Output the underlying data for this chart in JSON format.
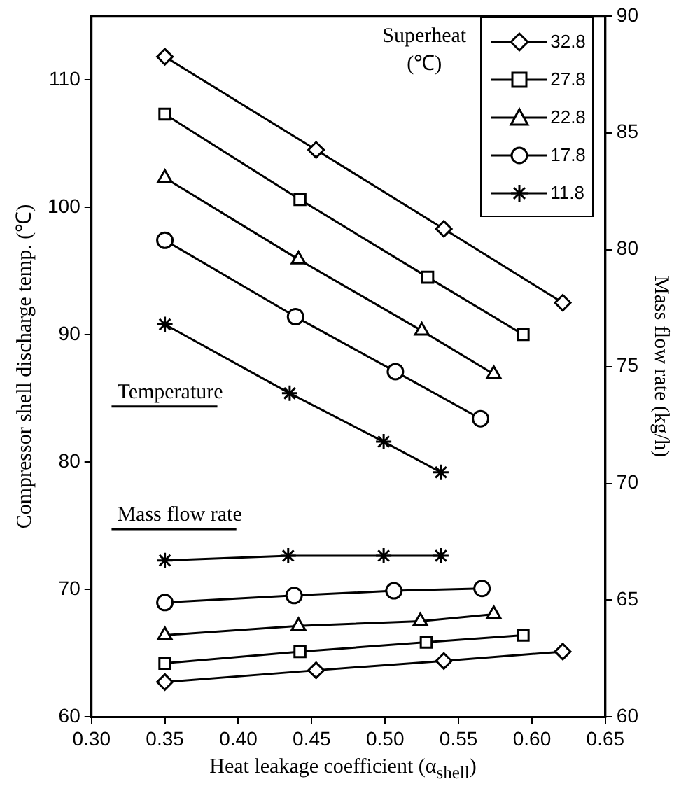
{
  "chart_data": {
    "type": "line",
    "xlabel": "Heat leakage coefficient (α$_{shell}$)",
    "ylabel": "Compressor shell discharge temp. (℃)",
    "y2label": "Mass flow rate (kg/h)",
    "legend_title": "Superheat (℃)",
    "legend": "top right",
    "line_style": "solid",
    "xlim": [
      0.3,
      0.65
    ],
    "xticks": [
      {
        "value": 0.3,
        "label": "0.30"
      },
      0.35,
      {
        "value": 0.4,
        "label": "0.40"
      },
      0.45,
      {
        "value": 0.5,
        "label": "0.50"
      },
      0.55,
      {
        "value": 0.6,
        "label": "0.60"
      },
      0.65
    ],
    "ylim": [
      60,
      115
    ],
    "yticks": [
      60,
      70,
      80,
      90,
      100,
      110
    ],
    "y2lim": [
      60,
      90
    ],
    "y2ticks": [
      60,
      65,
      70,
      75,
      80,
      85,
      90
    ],
    "annotations": [
      "Temperature",
      "Mass flow rate"
    ],
    "series": [
      {
        "name": "32.8",
        "color": "#000000",
        "marker": "diamond",
        "x": [
          0.35,
          0.453,
          0.54,
          0.621
        ],
        "values": [
          111.8,
          104.5,
          98.3,
          92.5
        ]
      },
      {
        "name": "27.8",
        "color": "#000000",
        "marker": "square",
        "x": [
          0.35,
          0.442,
          0.529,
          0.594
        ],
        "values": [
          107.3,
          100.6,
          94.5,
          90.0
        ]
      },
      {
        "name": "22.8",
        "color": "#000000",
        "marker": "triangle",
        "x": [
          0.35,
          0.441,
          0.525,
          0.574
        ],
        "values": [
          102.3,
          95.9,
          90.3,
          86.9
        ]
      },
      {
        "name": "17.8",
        "color": "#000000",
        "marker": "circle",
        "x": [
          0.35,
          0.439,
          0.507,
          0.565
        ],
        "values": [
          97.4,
          91.4,
          87.1,
          83.4
        ]
      },
      {
        "name": "11.8",
        "color": "#000000",
        "marker": "cross",
        "x": [
          0.35,
          0.435,
          0.499,
          0.538
        ],
        "values": [
          90.8,
          85.4,
          81.6,
          79.2
        ]
      },
      {
        "axis": "y2",
        "color": "#000000",
        "marker": "diamond",
        "x": [
          0.35,
          0.453,
          0.54,
          0.621
        ],
        "values": [
          61.5,
          62.0,
          62.4,
          62.8
        ]
      },
      {
        "axis": "y2",
        "color": "#000000",
        "marker": "square",
        "x": [
          0.35,
          0.442,
          0.528,
          0.594
        ],
        "values": [
          62.3,
          62.8,
          63.2,
          63.5
        ]
      },
      {
        "axis": "y2",
        "color": "#000000",
        "marker": "triangle",
        "x": [
          0.35,
          0.441,
          0.524,
          0.574
        ],
        "values": [
          63.5,
          63.9,
          64.1,
          64.4
        ]
      },
      {
        "axis": "y2",
        "color": "#000000",
        "marker": "circle",
        "x": [
          0.35,
          0.438,
          0.506,
          0.566
        ],
        "values": [
          64.9,
          65.2,
          65.4,
          65.5
        ]
      },
      {
        "axis": "y2",
        "color": "#000000",
        "marker": "cross",
        "x": [
          0.35,
          0.434,
          0.499,
          0.538
        ],
        "values": [
          66.7,
          66.9,
          66.9,
          66.9
        ]
      }
    ]
  }
}
